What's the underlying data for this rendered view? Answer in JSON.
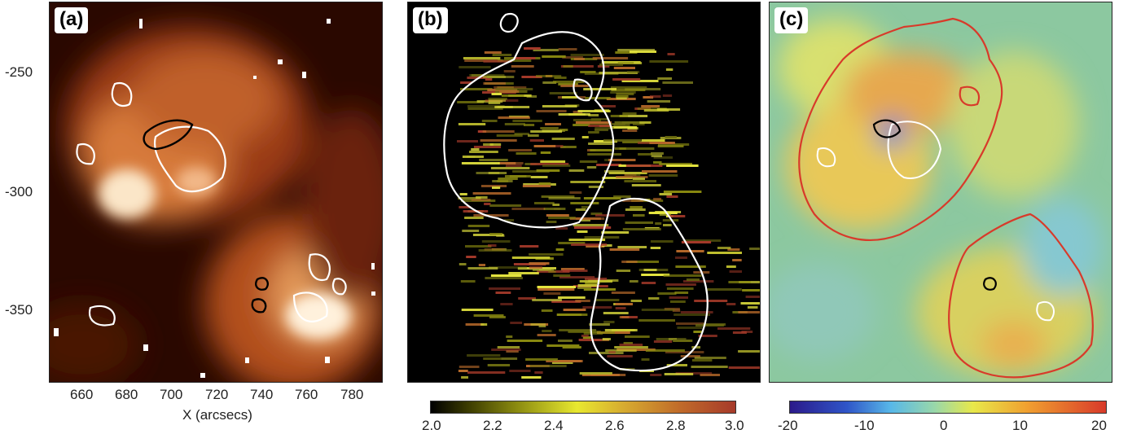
{
  "panels": {
    "a": {
      "label": "(a)"
    },
    "b": {
      "label": "(b)"
    },
    "c": {
      "label": "(c)"
    }
  },
  "panel_a_axes": {
    "y_ticks": [
      "-250",
      "-300",
      "-350"
    ],
    "x_ticks": [
      "660",
      "680",
      "700",
      "720",
      "740",
      "760",
      "780"
    ],
    "x_label": "X (arcsecs)"
  },
  "colorbar_b": {
    "ticks": [
      "2.0",
      "2.2",
      "2.4",
      "2.6",
      "2.8",
      "3.0"
    ]
  },
  "colorbar_c": {
    "ticks": [
      "-20",
      "-10",
      "0",
      "10",
      "20"
    ]
  }
}
